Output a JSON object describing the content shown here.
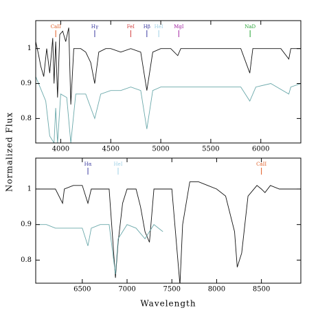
{
  "chart_data": [
    {
      "type": "line",
      "xlim": [
        3750,
        6400
      ],
      "ylim": [
        0.73,
        1.08
      ],
      "xticks": [
        4000,
        4500,
        5000,
        5500,
        6000
      ],
      "yticks": [
        0.8,
        0.9,
        1
      ],
      "annotations": [
        {
          "text": "CaII",
          "x": 3950,
          "color": "#e05a20"
        },
        {
          "text": "Hγ",
          "x": 4340,
          "color": "#3a3aa0"
        },
        {
          "text": "FeI",
          "x": 4700,
          "color": "#d03a3a"
        },
        {
          "text": "Hβ",
          "x": 4861,
          "color": "#3a3aa0"
        },
        {
          "text": "HeI",
          "x": 4980,
          "color": "#9fd0e6"
        },
        {
          "text": "MgI",
          "x": 5180,
          "color": "#a020a0"
        },
        {
          "text": "NaD",
          "x": 5893,
          "color": "#20a030"
        }
      ],
      "series": [
        {
          "color": "#111111",
          "x": [
            3750,
            3780,
            3800,
            3830,
            3860,
            3890,
            3920,
            3933,
            3950,
            3968,
            3990,
            4020,
            4050,
            4080,
            4101,
            4130,
            4200,
            4250,
            4300,
            4340,
            4380,
            4450,
            4500,
            4600,
            4700,
            4800,
            4861,
            4920,
            5000,
            5100,
            5170,
            5200,
            5300,
            5400,
            5500,
            5600,
            5700,
            5800,
            5890,
            5920,
            6000,
            6100,
            6200,
            6280,
            6300,
            6400
          ],
          "values": [
            1.02,
            0.98,
            0.95,
            0.92,
            1.0,
            0.93,
            1.03,
            0.9,
            1.02,
            0.86,
            1.04,
            1.05,
            1.02,
            1.06,
            0.84,
            1.0,
            1.0,
            0.99,
            0.96,
            0.9,
            0.99,
            1.0,
            1.0,
            0.99,
            1.0,
            0.99,
            0.88,
            0.99,
            1.0,
            1.0,
            0.98,
            1.0,
            1.0,
            1.0,
            1.0,
            1.0,
            1.0,
            1.0,
            0.93,
            1.0,
            1.0,
            1.0,
            1.0,
            0.97,
            1.0,
            1.0
          ]
        },
        {
          "color": "#6aa8aa",
          "x": [
            3750,
            3850,
            3890,
            3933,
            3950,
            3968,
            4000,
            4060,
            4101,
            4150,
            4250,
            4340,
            4400,
            4500,
            4600,
            4700,
            4800,
            4861,
            4920,
            5000,
            5200,
            5400,
            5600,
            5800,
            5890,
            5950,
            6100,
            6280,
            6300,
            6400
          ],
          "values": [
            0.92,
            0.85,
            0.75,
            0.73,
            0.83,
            0.73,
            0.87,
            0.86,
            0.73,
            0.87,
            0.87,
            0.8,
            0.87,
            0.88,
            0.88,
            0.89,
            0.88,
            0.77,
            0.88,
            0.89,
            0.89,
            0.89,
            0.89,
            0.89,
            0.85,
            0.89,
            0.9,
            0.87,
            0.89,
            0.9
          ]
        }
      ]
    },
    {
      "type": "line",
      "xlabel": "Wavelength",
      "ylabel": "Normalized Flux",
      "xlim": [
        5980,
        8940
      ],
      "ylim": [
        0.735,
        1.087
      ],
      "xticks": [
        6500,
        7000,
        7500,
        8000,
        8500
      ],
      "yticks": [
        0.8,
        0.9,
        1
      ],
      "annotations": [
        {
          "text": "Hα",
          "x": 6563,
          "color": "#3a3aa0"
        },
        {
          "text": "HeI",
          "x": 6900,
          "color": "#9fd0e6"
        },
        {
          "text": "CaII",
          "x": 8500,
          "color": "#e05a20"
        }
      ],
      "series": [
        {
          "color": "#111111",
          "x": [
            6000,
            6100,
            6200,
            6280,
            6300,
            6400,
            6500,
            6563,
            6600,
            6700,
            6800,
            6870,
            6900,
            6950,
            7000,
            7100,
            7150,
            7200,
            7250,
            7300,
            7400,
            7500,
            7590,
            7620,
            7700,
            7800,
            7900,
            8000,
            8100,
            8200,
            8230,
            8280,
            8350,
            8450,
            8500,
            8540,
            8600,
            8700,
            8800,
            8900
          ],
          "values": [
            1.0,
            1.0,
            1.0,
            0.96,
            1.0,
            1.01,
            1.01,
            0.96,
            1.0,
            1.0,
            1.0,
            0.75,
            0.85,
            0.96,
            1.0,
            1.0,
            0.95,
            0.88,
            0.85,
            1.0,
            1.0,
            1.0,
            0.73,
            0.9,
            1.02,
            1.02,
            1.01,
            1.0,
            0.98,
            0.88,
            0.78,
            0.82,
            0.98,
            1.01,
            1.0,
            0.99,
            1.01,
            1.0,
            1.0,
            1.0
          ]
        },
        {
          "color": "#6aa8aa",
          "x": [
            6000,
            6100,
            6200,
            6300,
            6400,
            6500,
            6563,
            6600,
            6700,
            6800,
            6870,
            6900,
            7000,
            7100,
            7200,
            7250,
            7300,
            7400
          ],
          "values": [
            0.9,
            0.9,
            0.89,
            0.89,
            0.89,
            0.89,
            0.84,
            0.89,
            0.9,
            0.9,
            0.76,
            0.86,
            0.9,
            0.89,
            0.86,
            0.88,
            0.9,
            0.88
          ]
        }
      ]
    }
  ]
}
